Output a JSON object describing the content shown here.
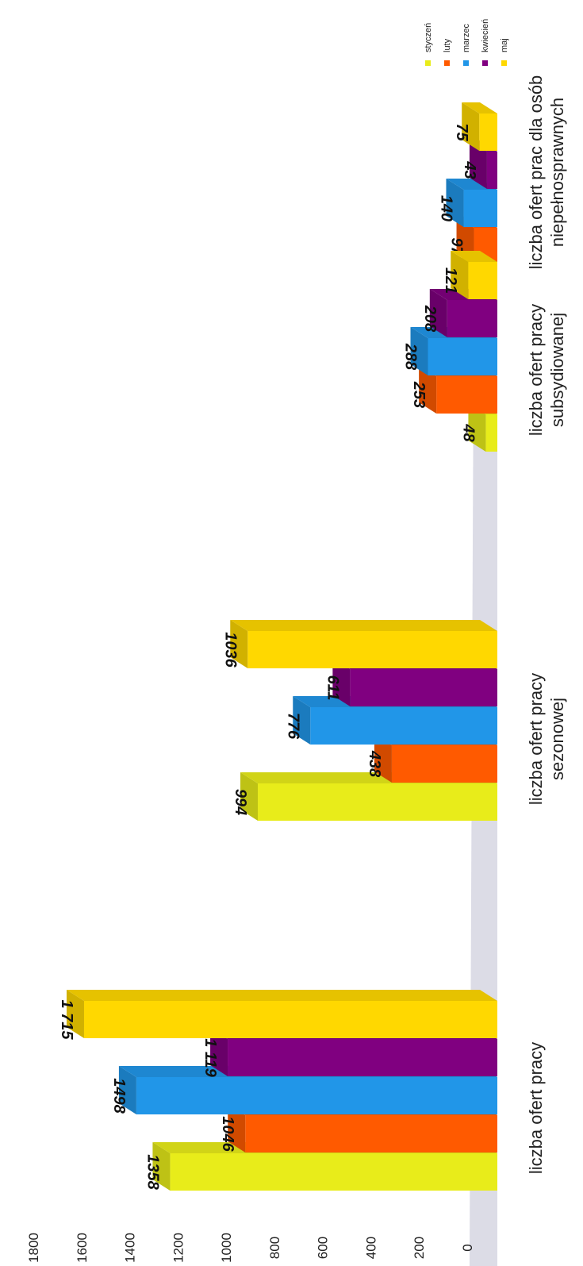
{
  "chart_data": {
    "type": "bar",
    "categories": [
      [
        "liczba ofert pracy"
      ],
      [
        "liczba ofert pracy",
        "sezonowej"
      ],
      [
        "liczba ofert pracy",
        "subsydiowanej"
      ],
      [
        "liczba ofert prac dla osób",
        "niepełnosprawnych"
      ]
    ],
    "series": [
      {
        "name": "styczeń",
        "color": "#e8ec1a",
        "values": [
          1358,
          994,
          48,
          76
        ]
      },
      {
        "name": "luty",
        "color": "#ff5a00",
        "values": [
          1046,
          438,
          253,
          97
        ]
      },
      {
        "name": "marzec",
        "color": "#2196e8",
        "values": [
          1498,
          776,
          288,
          140
        ]
      },
      {
        "name": "kwiecień",
        "color": "#800080",
        "values": [
          1119,
          611,
          208,
          43
        ]
      },
      {
        "name": "maj",
        "color": "#ffd800",
        "values": [
          1715,
          1036,
          121,
          75
        ]
      }
    ],
    "data_labels": [
      [
        "1358",
        "994",
        "48",
        "76"
      ],
      [
        "1046",
        "438",
        "253",
        "97"
      ],
      [
        "1498",
        "776",
        "288",
        "140"
      ],
      [
        "1 119",
        "611",
        "208",
        "43"
      ],
      [
        "1 715",
        "1036",
        "121",
        "75"
      ]
    ],
    "yticks": [
      "0",
      "200",
      "400",
      "600",
      "800",
      "1000",
      "1200",
      "1400",
      "1600",
      "1800"
    ],
    "ylim": [
      0,
      1800
    ],
    "legend_position": "top-right",
    "orientation": "rotated 90° clockwise, 3D bars",
    "title": "",
    "xlabel": "",
    "ylabel": ""
  }
}
